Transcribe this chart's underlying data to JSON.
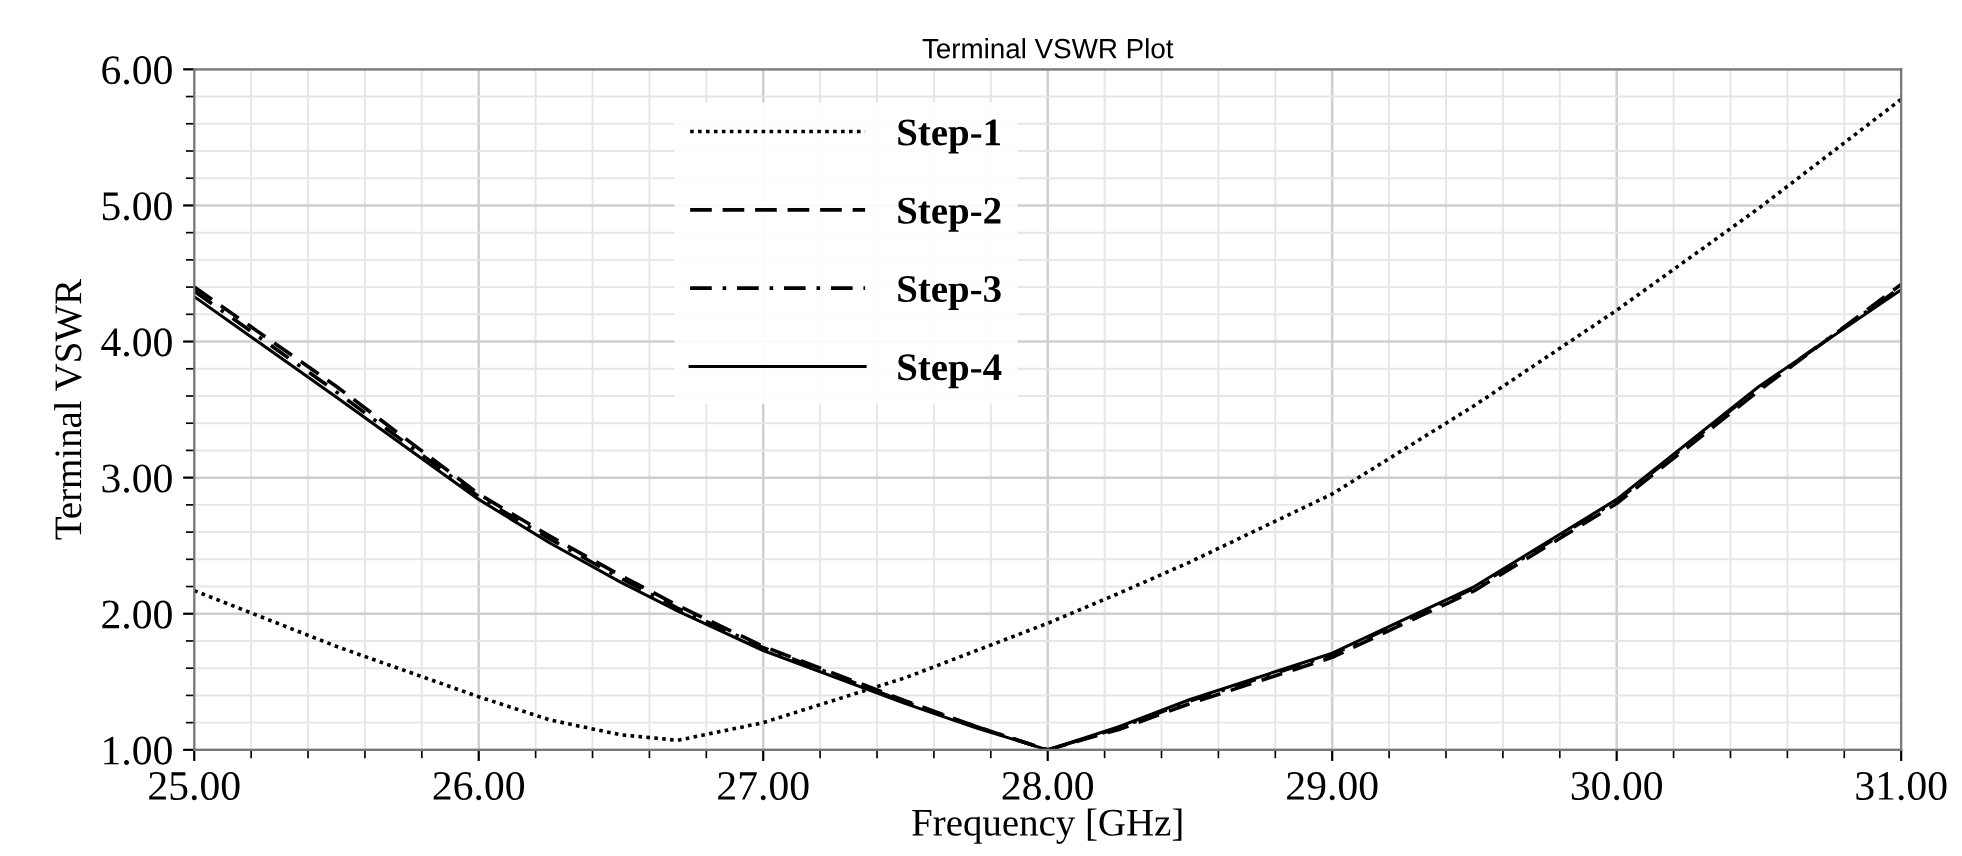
{
  "chart_data": {
    "type": "line",
    "title": "Terminal VSWR Plot",
    "xlabel": "Frequency [GHz]",
    "ylabel": "Terminal VSWR",
    "xlim": [
      25,
      31
    ],
    "ylim": [
      1,
      6
    ],
    "xticks": [
      {
        "value": 25,
        "label": "25.00"
      },
      {
        "value": 26,
        "label": "26.00"
      },
      {
        "value": 27,
        "label": "27.00"
      },
      {
        "value": 28,
        "label": "28.00"
      },
      {
        "value": 29,
        "label": "29.00"
      },
      {
        "value": 30,
        "label": "30.00"
      },
      {
        "value": 31,
        "label": "31.00"
      }
    ],
    "yticks": [
      {
        "value": 1,
        "label": "1.00"
      },
      {
        "value": 2,
        "label": "2.00"
      },
      {
        "value": 3,
        "label": "3.00"
      },
      {
        "value": 4,
        "label": "4.00"
      },
      {
        "value": 5,
        "label": "5.00"
      },
      {
        "value": 6,
        "label": "6.00"
      }
    ],
    "grid": true,
    "legend": "top",
    "marker": "none",
    "x": [
      25,
      25.5,
      26,
      26.25,
      26.5,
      26.7,
      27,
      27.5,
      27.75,
      28,
      28.25,
      28.5,
      29,
      29.5,
      30,
      30.5,
      31
    ],
    "series": [
      {
        "name": "Step-1",
        "color": "#000000",
        "line_style": "dotted",
        "values": [
          2.17,
          1.76,
          1.39,
          1.22,
          1.11,
          1.07,
          1.2,
          1.53,
          1.73,
          1.93,
          2.15,
          2.38,
          2.88,
          3.53,
          4.23,
          4.98,
          5.78
        ]
      },
      {
        "name": "Step-2",
        "color": "#000000",
        "line_style": "dashed",
        "values": [
          4.4,
          3.67,
          2.88,
          2.57,
          2.28,
          2.06,
          1.76,
          1.36,
          1.17,
          1.0,
          1.15,
          1.34,
          1.68,
          2.17,
          2.81,
          3.64,
          4.42
        ]
      },
      {
        "name": "Step-3",
        "color": "#000000",
        "line_style": "dashdot",
        "values": [
          4.37,
          3.63,
          2.86,
          2.55,
          2.26,
          2.04,
          1.75,
          1.35,
          1.17,
          1.0,
          1.16,
          1.36,
          1.7,
          2.19,
          2.83,
          3.66,
          4.4
        ]
      },
      {
        "name": "Step-4",
        "color": "#000000",
        "line_style": "solid",
        "values": [
          4.33,
          3.59,
          2.84,
          2.52,
          2.23,
          2.02,
          1.73,
          1.34,
          1.16,
          1.0,
          1.17,
          1.37,
          1.71,
          2.2,
          2.84,
          3.67,
          4.38
        ]
      }
    ]
  }
}
